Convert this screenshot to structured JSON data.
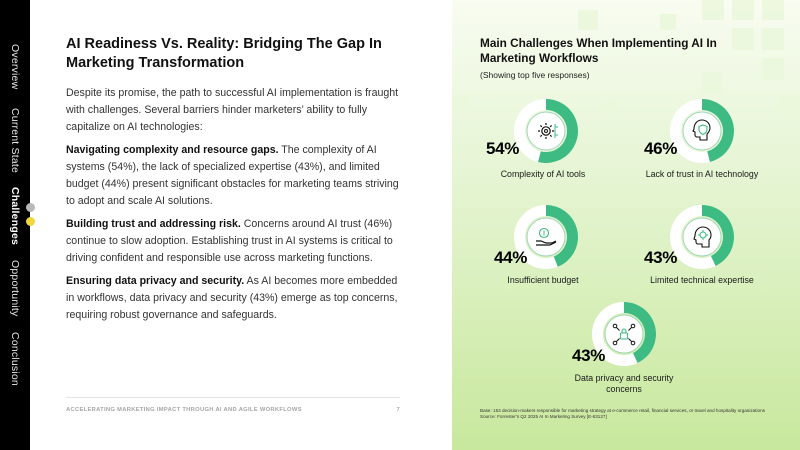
{
  "nav": {
    "items": [
      {
        "label": "Overview",
        "active": false
      },
      {
        "label": "Current State",
        "active": false
      },
      {
        "label": "Challenges",
        "active": true
      },
      {
        "label": "Opportunity",
        "active": false
      },
      {
        "label": "Conclusion",
        "active": false
      }
    ],
    "dot_colors": [
      "#b9b9b9",
      "#f2d63c"
    ]
  },
  "left": {
    "title": "AI Readiness Vs. Reality: Bridging The Gap In Marketing Transformation",
    "intro": "Despite its promise, the path to successful AI implementation is fraught with challenges. Several barriers hinder marketers’ ability to fully capitalize on AI technologies:",
    "sections": [
      {
        "heading": "Navigating complexity and resource gaps.",
        "body": " The complexity of AI systems (54%), the lack of specialized expertise (43%), and limited budget (44%) present significant obstacles for marketing teams striving to adopt and scale AI solutions."
      },
      {
        "heading": "Building trust and addressing risk.",
        "body": " Concerns around AI trust (46%) continue to slow adoption. Establishing trust in AI systems is critical to driving confident and responsible use across marketing functions."
      },
      {
        "heading": "Ensuring data privacy and security.",
        "body": " As AI becomes more embedded in workflows, data privacy and security (43%) emerge as top concerns, requiring robust governance and safeguards."
      }
    ]
  },
  "footer": {
    "text": "ACCELERATING MARKETING IMPACT THROUGH AI AND AGILE WORKFLOWS",
    "page": "7"
  },
  "panel": {
    "title": "Main Challenges When Implementing AI In Marketing Workflows",
    "subtitle": "(Showing top five responses)",
    "note_base": "Base: 153 decision-makers responsible for marketing strategy at e-commerce retail, financial services, or travel and hospitality organizations",
    "note_source": "Source: Forrester’s Q2 2025 AI In Marketing Survey [E-63127]"
  },
  "chart_data": {
    "type": "pie",
    "title": "Main Challenges When Implementing AI In Marketing Workflows",
    "subtitle": "(Showing top five responses)",
    "categories": [
      "Complexity of AI tools",
      "Lack of trust in AI technology",
      "Insufficient budget",
      "Limited technical expertise",
      "Data privacy and security concerns"
    ],
    "values": [
      54,
      46,
      44,
      43,
      43
    ],
    "display": [
      "54%",
      "46%",
      "44%",
      "43%",
      "43%"
    ],
    "icons": [
      "gear-network-icon",
      "brain-shield-icon",
      "money-hand-icon",
      "head-gear-icon",
      "lock-network-icon"
    ],
    "colors": {
      "fill": "#3dbb83",
      "track": "#ffffff",
      "ring": "#9cd7b7"
    }
  }
}
